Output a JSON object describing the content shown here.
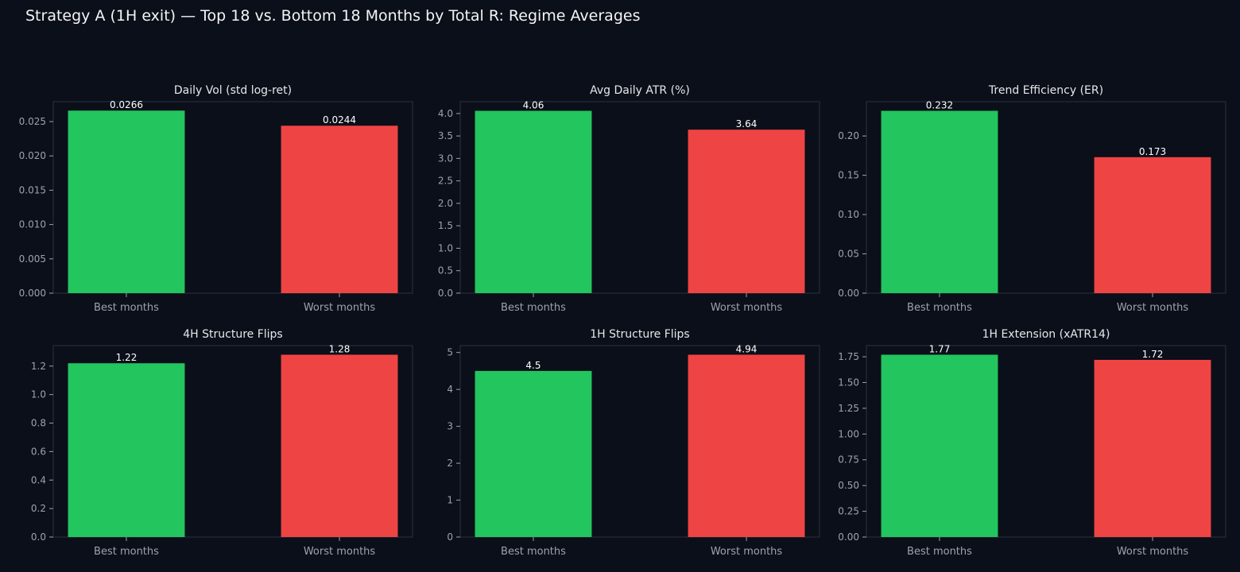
{
  "suptitle": "Strategy A (1H exit) — Top 18 vs. Bottom 18 Months by Total R: Regime Averages",
  "colors": {
    "background": "#0b0f19",
    "axes_border": "#2b3140",
    "tick_text": "#9ca3af",
    "title_text": "#e5e7eb",
    "value_text": "#ffffff",
    "best": "#22c55e",
    "worst": "#ef4444"
  },
  "chart_data": [
    {
      "type": "bar",
      "title": "Daily Vol (std log-ret)",
      "categories": [
        "Best months",
        "Worst months"
      ],
      "values": [
        0.0266,
        0.0244
      ],
      "value_labels": [
        "0.0266",
        "0.0244"
      ],
      "yticks": [
        "0.000",
        "0.005",
        "0.010",
        "0.015",
        "0.020",
        "0.025"
      ],
      "ytick_values": [
        0,
        0.005,
        0.01,
        0.015,
        0.02,
        0.025
      ],
      "ylim": [
        0,
        0.0279
      ]
    },
    {
      "type": "bar",
      "title": "Avg Daily ATR (%)",
      "categories": [
        "Best months",
        "Worst months"
      ],
      "values": [
        4.06,
        3.64
      ],
      "value_labels": [
        "4.06",
        "3.64"
      ],
      "yticks": [
        "0.0",
        "0.5",
        "1.0",
        "1.5",
        "2.0",
        "2.5",
        "3.0",
        "3.5",
        "4.0"
      ],
      "ytick_values": [
        0,
        0.5,
        1,
        1.5,
        2,
        2.5,
        3,
        3.5,
        4
      ],
      "ylim": [
        0,
        4.263
      ]
    },
    {
      "type": "bar",
      "title": "Trend Efficiency (ER)",
      "categories": [
        "Best months",
        "Worst months"
      ],
      "values": [
        0.232,
        0.173
      ],
      "value_labels": [
        "0.232",
        "0.173"
      ],
      "yticks": [
        "0.00",
        "0.05",
        "0.10",
        "0.15",
        "0.20"
      ],
      "ytick_values": [
        0,
        0.05,
        0.1,
        0.15,
        0.2
      ],
      "ylim": [
        0,
        0.2436
      ]
    },
    {
      "type": "bar",
      "title": "4H Structure Flips",
      "categories": [
        "Best months",
        "Worst months"
      ],
      "values": [
        1.22,
        1.28
      ],
      "value_labels": [
        "1.22",
        "1.28"
      ],
      "yticks": [
        "0.0",
        "0.2",
        "0.4",
        "0.6",
        "0.8",
        "1.0",
        "1.2"
      ],
      "ytick_values": [
        0,
        0.2,
        0.4,
        0.6,
        0.8,
        1.0,
        1.2
      ],
      "ylim": [
        0,
        1.344
      ]
    },
    {
      "type": "bar",
      "title": "1H Structure Flips",
      "categories": [
        "Best months",
        "Worst months"
      ],
      "values": [
        4.5,
        4.94
      ],
      "value_labels": [
        "4.5",
        "4.94"
      ],
      "yticks": [
        "0",
        "1",
        "2",
        "3",
        "4",
        "5"
      ],
      "ytick_values": [
        0,
        1,
        2,
        3,
        4,
        5
      ],
      "ylim": [
        0,
        5.187
      ]
    },
    {
      "type": "bar",
      "title": "1H Extension (xATR14)",
      "categories": [
        "Best months",
        "Worst months"
      ],
      "values": [
        1.77,
        1.72
      ],
      "value_labels": [
        "1.77",
        "1.72"
      ],
      "yticks": [
        "0.00",
        "0.25",
        "0.50",
        "0.75",
        "1.00",
        "1.25",
        "1.50",
        "1.75"
      ],
      "ytick_values": [
        0,
        0.25,
        0.5,
        0.75,
        1.0,
        1.25,
        1.5,
        1.75
      ],
      "ylim": [
        0,
        1.8585
      ]
    }
  ]
}
